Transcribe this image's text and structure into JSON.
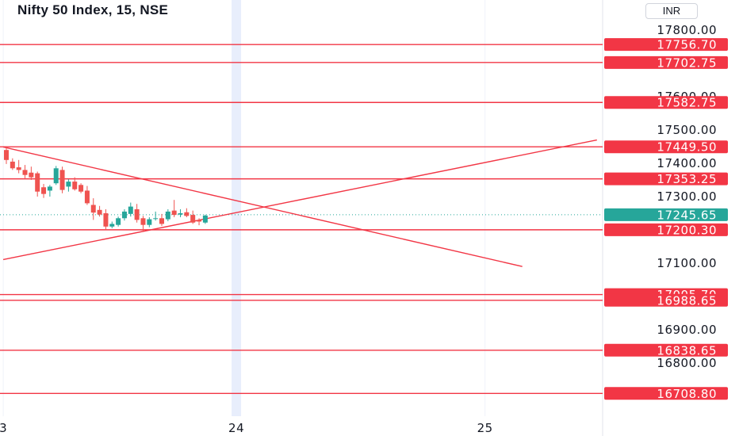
{
  "header": {
    "title": "Nifty 50 Index, 15, NSE",
    "currency": "INR"
  },
  "colors": {
    "level_line": "#f23645",
    "up_candle": "#26a69a",
    "down_candle": "#ef5350",
    "highlight_band": "#e8eefc",
    "axis_text": "#131722"
  },
  "chart_data": {
    "type": "candlestick",
    "price_axis": {
      "ticks": [
        17800,
        17600,
        17500,
        17400,
        17300,
        17100,
        16900,
        16800
      ],
      "tick_labels": [
        "17800.00",
        "17600.00",
        "17500.00",
        "17400.00",
        "17300.00",
        "17100.00",
        "16900.00",
        "16800.00"
      ],
      "range": [
        16680,
        17855
      ]
    },
    "time_axis": {
      "labels": [
        {
          "text": "3",
          "slot": -0.5
        },
        {
          "text": "24",
          "slot": 37
        },
        {
          "text": "25",
          "slot": 77
        }
      ],
      "highlight_slot": 37
    },
    "horizontal_levels": [
      17756.7,
      17702.75,
      17582.75,
      17449.5,
      17353.25,
      17200.3,
      17005.7,
      16988.65,
      16838.65,
      16708.8
    ],
    "level_labels": [
      "17756.70",
      "17702.75",
      "17582.75",
      "17449.50",
      "17353.25",
      "17200.30",
      "17005.70",
      "16988.65",
      "16838.65",
      "16708.80"
    ],
    "last_price": 17245.65,
    "last_price_label": "17245.65",
    "trend_lines": [
      {
        "name": "descending",
        "from": {
          "slot": -0.5,
          "price": 17449
        },
        "to": {
          "slot": 83,
          "price": 17090
        }
      },
      {
        "name": "ascending",
        "from": {
          "slot": -0.5,
          "price": 17111
        },
        "to": {
          "slot": 95,
          "price": 17470
        }
      }
    ],
    "candles": [
      {
        "slot": 0,
        "o": 17440,
        "h": 17449,
        "l": 17398,
        "c": 17410
      },
      {
        "slot": 1,
        "o": 17405,
        "h": 17415,
        "l": 17380,
        "c": 17385
      },
      {
        "slot": 2,
        "o": 17388,
        "h": 17410,
        "l": 17370,
        "c": 17380
      },
      {
        "slot": 3,
        "o": 17380,
        "h": 17395,
        "l": 17355,
        "c": 17365
      },
      {
        "slot": 4,
        "o": 17372,
        "h": 17390,
        "l": 17350,
        "c": 17358
      },
      {
        "slot": 5,
        "o": 17370,
        "h": 17375,
        "l": 17300,
        "c": 17315
      },
      {
        "slot": 6,
        "o": 17328,
        "h": 17338,
        "l": 17296,
        "c": 17308
      },
      {
        "slot": 7,
        "o": 17318,
        "h": 17335,
        "l": 17300,
        "c": 17330
      },
      {
        "slot": 8,
        "o": 17340,
        "h": 17392,
        "l": 17335,
        "c": 17385
      },
      {
        "slot": 9,
        "o": 17380,
        "h": 17390,
        "l": 17310,
        "c": 17320
      },
      {
        "slot": 10,
        "o": 17330,
        "h": 17352,
        "l": 17315,
        "c": 17345
      },
      {
        "slot": 11,
        "o": 17345,
        "h": 17358,
        "l": 17318,
        "c": 17322
      },
      {
        "slot": 12,
        "o": 17335,
        "h": 17340,
        "l": 17310,
        "c": 17315
      },
      {
        "slot": 13,
        "o": 17318,
        "h": 17332,
        "l": 17275,
        "c": 17280
      },
      {
        "slot": 14,
        "o": 17275,
        "h": 17295,
        "l": 17230,
        "c": 17252
      },
      {
        "slot": 15,
        "o": 17260,
        "h": 17272,
        "l": 17240,
        "c": 17246
      },
      {
        "slot": 16,
        "o": 17250,
        "h": 17262,
        "l": 17200,
        "c": 17210
      },
      {
        "slot": 17,
        "o": 17210,
        "h": 17225,
        "l": 17205,
        "c": 17218
      },
      {
        "slot": 18,
        "o": 17215,
        "h": 17240,
        "l": 17210,
        "c": 17235
      },
      {
        "slot": 19,
        "o": 17235,
        "h": 17262,
        "l": 17228,
        "c": 17255
      },
      {
        "slot": 20,
        "o": 17248,
        "h": 17282,
        "l": 17240,
        "c": 17270
      },
      {
        "slot": 21,
        "o": 17262,
        "h": 17278,
        "l": 17222,
        "c": 17230
      },
      {
        "slot": 22,
        "o": 17235,
        "h": 17242,
        "l": 17195,
        "c": 17215
      },
      {
        "slot": 23,
        "o": 17215,
        "h": 17238,
        "l": 17208,
        "c": 17232
      },
      {
        "slot": 24,
        "o": 17233,
        "h": 17255,
        "l": 17228,
        "c": 17235
      },
      {
        "slot": 25,
        "o": 17235,
        "h": 17248,
        "l": 17212,
        "c": 17218
      },
      {
        "slot": 26,
        "o": 17232,
        "h": 17262,
        "l": 17226,
        "c": 17255
      },
      {
        "slot": 27,
        "o": 17258,
        "h": 17290,
        "l": 17238,
        "c": 17245
      },
      {
        "slot": 28,
        "o": 17246,
        "h": 17262,
        "l": 17238,
        "c": 17250
      },
      {
        "slot": 29,
        "o": 17253,
        "h": 17265,
        "l": 17238,
        "c": 17242
      },
      {
        "slot": 30,
        "o": 17245,
        "h": 17258,
        "l": 17218,
        "c": 17222
      },
      {
        "slot": 31,
        "o": 17230,
        "h": 17235,
        "l": 17214,
        "c": 17225
      },
      {
        "slot": 32,
        "o": 17222,
        "h": 17246,
        "l": 17218,
        "c": 17243
      }
    ]
  }
}
